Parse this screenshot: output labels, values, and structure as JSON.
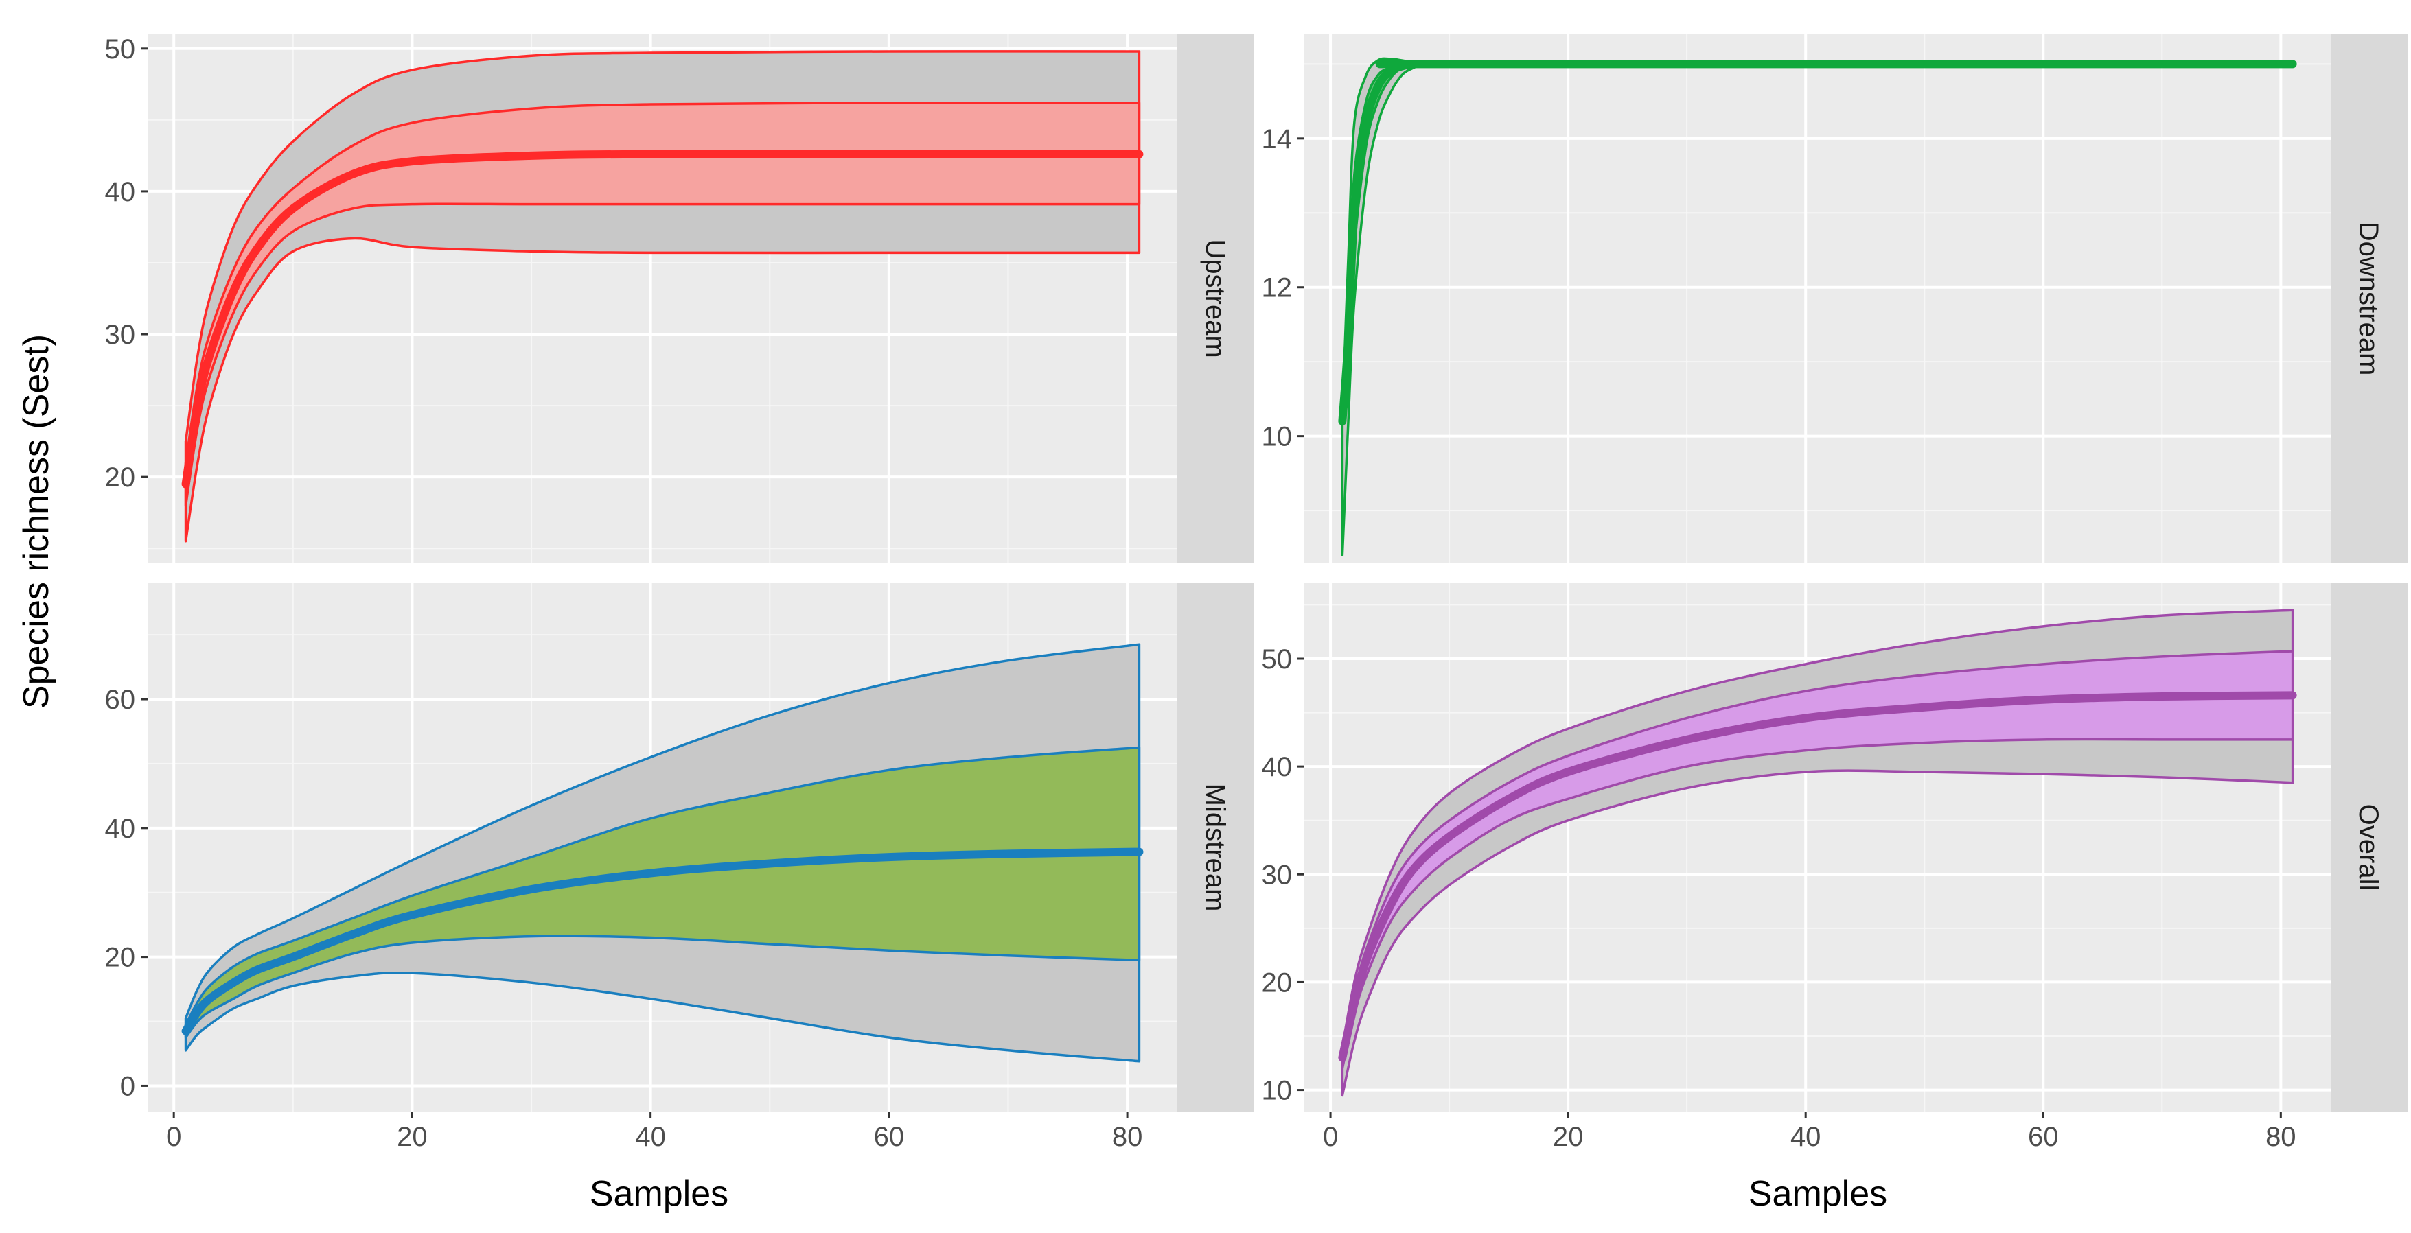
{
  "chart_data": {
    "type": "area",
    "title": "",
    "ylabel": "Species richness (Sest)",
    "xlabel_left": "Samples",
    "xlabel_right": "Samples",
    "x_range": [
      1,
      81
    ],
    "panels": [
      {
        "id": "upstream",
        "strip_label": "Upstream",
        "color": "#ff2a2a",
        "fill": "#f6a3a0",
        "ylim": [
          14,
          51
        ],
        "yticks": [
          20,
          30,
          40,
          50
        ],
        "yticklabels": [
          "20",
          "30",
          "40",
          "50"
        ],
        "xticks": [],
        "xticklabels": [],
        "series": {
          "x": [
            1,
            2,
            3,
            5,
            7,
            10,
            15,
            20,
            30,
            40,
            60,
            81
          ],
          "outer_upper": [
            22.5,
            28.5,
            32.5,
            37.5,
            40.5,
            43.5,
            46.8,
            48.5,
            49.5,
            49.7,
            49.8,
            49.8
          ],
          "inner_upper": [
            21,
            26.5,
            30,
            34.5,
            37.5,
            40.2,
            43.2,
            44.8,
            45.8,
            46.1,
            46.2,
            46.2
          ],
          "mean": [
            19.5,
            25,
            28.5,
            33,
            36,
            38.8,
            41.2,
            42.1,
            42.5,
            42.6,
            42.6,
            42.6
          ],
          "inner_lower": [
            18,
            23.5,
            27,
            31.5,
            34.5,
            37.2,
            38.8,
            39.1,
            39.1,
            39.1,
            39.1,
            39.1
          ],
          "outer_lower": [
            15.5,
            21,
            25,
            30,
            33,
            35.8,
            36.7,
            36.1,
            35.8,
            35.7,
            35.7,
            35.7
          ]
        }
      },
      {
        "id": "downstream",
        "strip_label": "Downstream",
        "color": "#0fa83c",
        "fill": "#5bbf73",
        "ylim": [
          8.3,
          15.4
        ],
        "yticks": [
          10,
          12,
          14
        ],
        "yticklabels": [
          "10",
          "12",
          "14"
        ],
        "xticks": [],
        "xticklabels": [],
        "series": {
          "x": [
            1,
            1.5,
            2,
            3,
            4,
            5,
            6,
            7,
            8,
            10,
            81
          ],
          "outer_upper": [
            10.3,
            12.4,
            14.2,
            14.85,
            15.05,
            15.07,
            15.05,
            15.02,
            15.0,
            15.0,
            15.0
          ],
          "inner_upper": [
            10.2,
            11.8,
            13.5,
            14.5,
            14.85,
            14.95,
            15.0,
            15.0,
            15.0,
            15.0,
            15.0
          ],
          "mean": [
            10.2,
            11.3,
            13.0,
            14.2,
            14.7,
            14.9,
            14.97,
            15.0,
            15.0,
            15.0,
            15.0
          ],
          "inner_lower": [
            10.2,
            10.8,
            12.5,
            13.9,
            14.5,
            14.8,
            14.95,
            15.0,
            15.0,
            15.0,
            15.0
          ],
          "outer_lower": [
            8.4,
            10.2,
            11.8,
            13.4,
            14.2,
            14.6,
            14.85,
            14.95,
            15.0,
            15.0,
            15.0
          ]
        }
      },
      {
        "id": "midstream",
        "strip_label": "Midstream",
        "color": "#1a7fbf",
        "fill": "#93ba59",
        "ylim": [
          -4,
          78
        ],
        "yticks": [
          0,
          20,
          40,
          60
        ],
        "yticklabels": [
          "0",
          "20",
          "40",
          "60"
        ],
        "xticks": [
          0,
          20,
          40,
          60,
          80
        ],
        "xticklabels": [
          "0",
          "20",
          "40",
          "60",
          "80"
        ],
        "series": {
          "x": [
            1,
            2,
            3,
            5,
            7,
            10,
            15,
            20,
            30,
            40,
            50,
            60,
            70,
            81
          ],
          "outer_upper": [
            10.5,
            15,
            18,
            21.5,
            23.5,
            26,
            30.5,
            35,
            43.5,
            51,
            57.5,
            62.5,
            66,
            68.5
          ],
          "inner_upper": [
            9.5,
            13,
            15.5,
            18.5,
            20.5,
            22.5,
            26,
            29.5,
            35.5,
            41.5,
            45.5,
            49,
            51,
            52.5
          ],
          "mean": [
            8.5,
            11.5,
            13.5,
            16,
            18,
            20,
            23.5,
            26.5,
            30.5,
            33,
            34.5,
            35.5,
            36,
            36.3
          ],
          "inner_lower": [
            7.5,
            10,
            11.5,
            13.5,
            15.5,
            17.5,
            20.5,
            22.2,
            23.2,
            23,
            22,
            21,
            20.2,
            19.5
          ],
          "outer_lower": [
            5.5,
            8,
            9.5,
            12,
            13.5,
            15.5,
            17,
            17.5,
            16,
            13.5,
            10.5,
            7.5,
            5.5,
            3.8
          ]
        }
      },
      {
        "id": "overall",
        "strip_label": "Overall",
        "color": "#a04aaa",
        "fill": "#d79be8",
        "ylim": [
          8,
          57
        ],
        "yticks": [
          10,
          20,
          30,
          40,
          50
        ],
        "yticklabels": [
          "10",
          "20",
          "30",
          "40",
          "50"
        ],
        "xticks": [
          0,
          20,
          40,
          60,
          80
        ],
        "xticklabels": [
          "0",
          "20",
          "40",
          "60",
          "80"
        ],
        "series": {
          "x": [
            1,
            2,
            3,
            5,
            7,
            10,
            15,
            20,
            30,
            40,
            50,
            60,
            70,
            81
          ],
          "outer_upper": [
            14,
            20,
            24,
            30,
            34,
            37.5,
            41,
            43.5,
            47,
            49.5,
            51.5,
            53,
            54,
            54.5
          ],
          "inner_upper": [
            13.5,
            19,
            23,
            28.5,
            32,
            35,
            38.5,
            41,
            44.5,
            47,
            48.5,
            49.5,
            50.2,
            50.7
          ],
          "mean": [
            13,
            18,
            22,
            27,
            30.5,
            33.5,
            37,
            39.5,
            42.5,
            44.5,
            45.5,
            46.2,
            46.5,
            46.6
          ],
          "inner_lower": [
            12,
            17,
            20.5,
            25.5,
            28.5,
            31.5,
            35,
            37,
            40,
            41.5,
            42.2,
            42.5,
            42.5,
            42.5
          ],
          "outer_lower": [
            9.5,
            14.5,
            18,
            23,
            26,
            29,
            32.5,
            35,
            38,
            39.5,
            39.5,
            39.3,
            39,
            38.5
          ]
        }
      }
    ]
  }
}
